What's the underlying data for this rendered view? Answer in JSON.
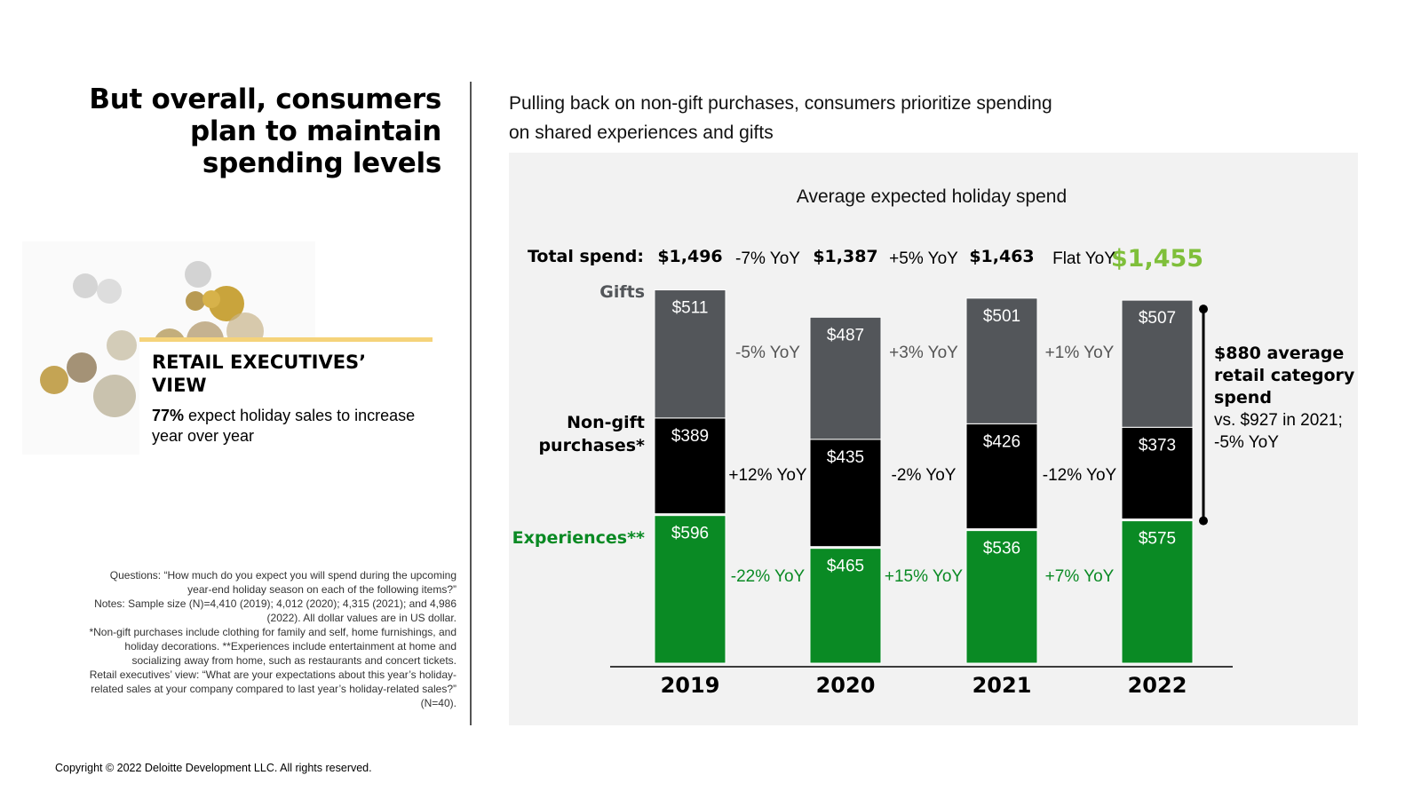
{
  "left_title": "But overall, consumers plan to maintain spending levels",
  "retail_view": {
    "title": "RETAIL EXECUTIVES’ VIEW",
    "stat": "77%",
    "text": " expect holiday sales to increase year over year"
  },
  "notes": [
    "Questions: “How much do you expect you will spend during the upcoming year-end holiday season on each of the following items?”",
    "Notes: Sample size (N)=4,410 (2019); 4,012 (2020); 4,315 (2021); and 4,986 (2022). All dollar values are in US dollar.",
    "*Non-gift purchases include clothing for family and self, home furnishings, and holiday decorations. **Experiences include entertainment at home and socializing away from home, such as restaurants and concert tickets.",
    "Retail executives’ view: “What are your expectations about this year’s holiday-related sales at your company compared to last year’s holiday-related sales?” (N=40)."
  ],
  "copyright": "Copyright © 2022 Deloitte Development LLC. All rights reserved.",
  "subtitle": "Pulling back on non-gift purchases, consumers prioritize spending on shared experiences and gifts",
  "colors": {
    "gifts": "#53565a",
    "nongift": "#000000",
    "experiences": "#0a8a24",
    "highlight": "#7fbf3a",
    "panel": "#f2f2f2"
  },
  "chart_data": {
    "type": "bar",
    "stacked": true,
    "title": "Average expected holiday spend",
    "categories": [
      "2019",
      "2020",
      "2021",
      "2022"
    ],
    "series": [
      {
        "name": "Experiences**",
        "values": [
          596,
          465,
          536,
          575
        ],
        "labels": [
          "$596",
          "$465",
          "$536",
          "$575"
        ]
      },
      {
        "name": "Non-gift purchases*",
        "values": [
          389,
          435,
          426,
          373
        ],
        "labels": [
          "$389",
          "$435",
          "$426",
          "$373"
        ]
      },
      {
        "name": "Gifts",
        "values": [
          511,
          487,
          501,
          507
        ],
        "labels": [
          "$511",
          "$487",
          "$501",
          "$507"
        ]
      }
    ],
    "totals_label": "Total spend:",
    "totals": [
      "$1,496",
      "$1,387",
      "$1,463",
      "$1,455"
    ],
    "total_yoy": [
      "-7% YoY",
      "+5% YoY",
      "Flat YoY"
    ],
    "yoy": {
      "Gifts": [
        "-5% YoY",
        "+3% YoY",
        "+1% YoY"
      ],
      "Non-gift purchases*": [
        "+12% YoY",
        "-2% YoY",
        "-12% YoY"
      ],
      "Experiences**": [
        "-22% YoY",
        "+15% YoY",
        "+7% YoY"
      ]
    },
    "annotation": {
      "bold": "$880 average retail category spend",
      "text": "vs. $927 in 2021; -5% YoY"
    },
    "ylim": [
      0,
      1500
    ]
  }
}
